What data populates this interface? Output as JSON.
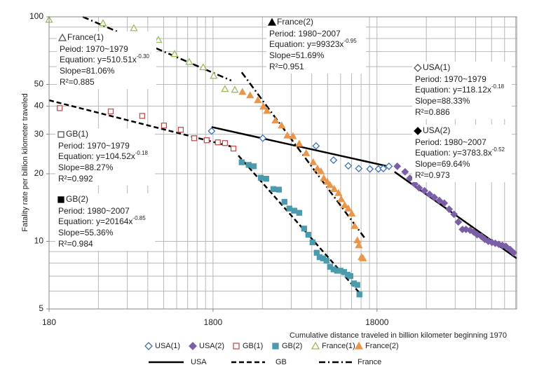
{
  "chart_data": {
    "type": "scatter",
    "y_label": "Fatality rate per billion kilometer traveled",
    "x_label": "Cumulative distance traveled in billion kilometer beginning 1970",
    "log_x": true,
    "log_y": true,
    "grid": true,
    "xlim": [
      180,
      128000
    ],
    "ylim": [
      5,
      100
    ],
    "xticks": [
      180,
      1800,
      18000
    ],
    "yticks": [
      5,
      10,
      20,
      30,
      40,
      50,
      100
    ],
    "xgrid": [
      180,
      360,
      540,
      720,
      900,
      1080,
      1260,
      1440,
      1620,
      1800,
      3600,
      5400,
      7200,
      9000,
      10800,
      12600,
      14400,
      16200,
      18000,
      36000,
      54000,
      72000,
      90000,
      108000,
      126000
    ],
    "ygrid": [
      5,
      6,
      7,
      8,
      9,
      10,
      20,
      30,
      40,
      50,
      60,
      70,
      80,
      90,
      100
    ],
    "series": [
      {
        "name": "USA(1)",
        "color": "#3c6fb5",
        "marker": "diamond",
        "filled": false,
        "x": [
          1764,
          3620,
          7650,
          9780,
          12030,
          13940,
          16300,
          18370,
          19660,
          21300
        ],
        "values": [
          31.0,
          28.8,
          26.6,
          23.0,
          21.7,
          21.1,
          21.0,
          21.0,
          21.1,
          21.6
        ],
        "fit": {
          "period": "Period: 1970~1979",
          "equation": "Equation: y=118.12x",
          "exponent": "-0.18",
          "slope": "Slope=88.33%",
          "r2": "R²=0.886"
        }
      },
      {
        "name": "USA(2)",
        "color": "#7b5ea7",
        "marker": "diamond",
        "filled": true,
        "x": [
          23940,
          26700,
          28600,
          30600,
          32500,
          35100,
          37700,
          40300,
          43200,
          46300,
          49600,
          53100,
          56400,
          59800,
          62800,
          66600,
          70000,
          73500,
          78100,
          81900,
          86000,
          90400,
          94900,
          99700,
          104800,
          110000,
          116800,
          122600
        ],
        "values": [
          21.6,
          20.4,
          19.1,
          18.0,
          17.3,
          16.8,
          16.2,
          15.7,
          15.2,
          14.8,
          13.9,
          13.2,
          12.2,
          11.3,
          11.3,
          11.2,
          11.0,
          10.7,
          10.5,
          10.2,
          10.0,
          9.9,
          9.8,
          9.7,
          9.6,
          9.5,
          9.2,
          8.9
        ],
        "fit": {
          "period": "Period: 1980~2007",
          "equation": "Equation: y=3783.8x",
          "exponent": "-0.52",
          "slope": "Slope=69.64%",
          "r2": "R²=0.973"
        }
      },
      {
        "name": "GB(1)",
        "color": "#c0504d",
        "marker": "square",
        "filled": false,
        "x": [
          209,
          428,
          666,
          904,
          1145,
          1381,
          1647,
          1927,
          2128,
          2398
        ],
        "values": [
          39.2,
          37.9,
          36.2,
          32.8,
          31.4,
          28.8,
          28.2,
          27.6,
          27.4,
          25.9
        ],
        "fit": {
          "period": "Period: 1970~1979",
          "equation": "Equation: y=104.52x",
          "exponent": "-0.18",
          "slope": "Slope=88.27%",
          "r2": "R²=0.992"
        }
      },
      {
        "name": "GB(2)",
        "color": "#4a9bad",
        "marker": "square",
        "filled": true,
        "x": [
          2693,
          2970,
          3190,
          3520,
          3800,
          4200,
          4540,
          4910,
          5260,
          5640,
          6040,
          6470,
          6860,
          7280,
          7720,
          8040,
          8440,
          8860,
          9310,
          9780,
          10270,
          10790,
          11330,
          11910,
          12390,
          13020,
          13660,
          14070
        ],
        "values": [
          22.5,
          21.9,
          21.6,
          19.2,
          19.0,
          17.1,
          17.0,
          15.0,
          14.0,
          13.7,
          13.4,
          11.4,
          10.7,
          9.9,
          8.9,
          8.5,
          8.4,
          8.2,
          7.7,
          7.5,
          7.4,
          7.4,
          7.3,
          7.1,
          7.0,
          6.5,
          6.4,
          5.8
        ],
        "fit": {
          "period": "Period: 1980~2007",
          "equation": "Equation: y=20164x",
          "exponent": "-0.85",
          "slope": "Slope=55.36%",
          "r2": "R²=0.984"
        }
      },
      {
        "name": "France(1)",
        "color": "#9bbb59",
        "marker": "triangle",
        "filled": false,
        "x": [
          180,
          384,
          592,
          835,
          1048,
          1289,
          1568,
          1817,
          2128,
          2445
        ],
        "values": [
          97,
          93.7,
          89,
          78.9,
          68.3,
          63,
          59.6,
          54.6,
          47.7,
          47.3
        ],
        "fit": {
          "period": "Peiod: 1970~1979",
          "equation": "Equation: y=510.51x",
          "exponent": "-0.30",
          "slope": "Slope=81.06%",
          "r2": "R²=0.885"
        }
      },
      {
        "name": "France(2)",
        "color": "#e8964a",
        "marker": "triangle",
        "filled": true,
        "x": [
          2720,
          3030,
          3380,
          3650,
          3840,
          4320,
          4720,
          5110,
          5530,
          6040,
          6660,
          7350,
          7800,
          8190,
          8520,
          8960,
          9310,
          9870,
          10480,
          10890,
          11440,
          12030,
          12630,
          13140,
          13660,
          13940,
          14490,
          14790
        ],
        "values": [
          46.3,
          44.7,
          42.5,
          39.8,
          38.1,
          34.5,
          32.8,
          29.6,
          29.4,
          27.2,
          24.7,
          22.5,
          21.1,
          20.5,
          19.1,
          18.4,
          17.8,
          17.1,
          16.4,
          15.4,
          14.5,
          14.0,
          13.3,
          11.7,
          10.1,
          9.6,
          8.5,
          8.4
        ],
        "fit": {
          "period": "Period: 1980~2007",
          "equation": "Equation: y=99323x",
          "exponent": "-0.95",
          "slope": "Slope=51.69%",
          "r2": "R²=0.951"
        }
      }
    ],
    "trendlines": [
      {
        "name": "USA",
        "color": "#000000",
        "dash": "solid",
        "x": [
          1764,
          20900,
          null,
          23030,
          128000
        ],
        "values": [
          32.3,
          21.6,
          null,
          20.4,
          8.4
        ]
      },
      {
        "name": "GB",
        "color": "#000000",
        "dash": "dash",
        "x": [
          180,
          2445,
          null,
          2570,
          14070
        ],
        "values": [
          42.5,
          26.2,
          null,
          24.1,
          5.9
        ]
      },
      {
        "name": "France",
        "color": "#000000",
        "dash": "dashdot",
        "x": [
          289,
          2325,
          null,
          2693,
          15070
        ],
        "values": [
          100,
          52.0,
          null,
          56.6,
          10.4
        ]
      }
    ]
  }
}
